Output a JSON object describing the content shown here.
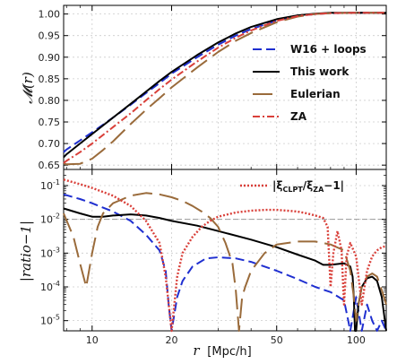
{
  "colors": {
    "w16": "#1f2fd0",
    "this_work": "#000000",
    "eulerian": "#9a6b3b",
    "za": "#d9403a",
    "ref_line": "#999999",
    "grid": "#cccccc"
  },
  "chart_data": [
    {
      "type": "line",
      "panel": "top",
      "xlabel": "r [Mpc/h]",
      "ylabel": "M(r)",
      "x_scale": "log",
      "xlim": [
        7.8,
        130
      ],
      "ylim": [
        0.64,
        1.02
      ],
      "grid": true,
      "legend_position": "right",
      "yticks": [
        0.65,
        0.7,
        0.75,
        0.8,
        0.85,
        0.9,
        0.95,
        1.0
      ],
      "ytick_labels": [
        "0.65",
        "0.70",
        "0.75",
        "0.80",
        "0.85",
        "0.90",
        "0.95",
        "1.00"
      ],
      "series": [
        {
          "name": "W16 + loops",
          "style": "dashed",
          "x": [
            7.8,
            8,
            9,
            10,
            12,
            14,
            16,
            18,
            20,
            25,
            30,
            35,
            40,
            50,
            60,
            70,
            80,
            100,
            130
          ],
          "y": [
            0.68,
            0.686,
            0.707,
            0.726,
            0.76,
            0.79,
            0.817,
            0.84,
            0.862,
            0.9,
            0.929,
            0.95,
            0.965,
            0.985,
            0.995,
            1.0,
            1.002,
            1.003,
            1.003
          ]
        },
        {
          "name": "This work",
          "style": "solid",
          "x": [
            7.8,
            8,
            9,
            10,
            12,
            14,
            16,
            18,
            20,
            25,
            30,
            35,
            40,
            50,
            60,
            70,
            80,
            100,
            130
          ],
          "y": [
            0.668,
            0.675,
            0.7,
            0.722,
            0.76,
            0.792,
            0.82,
            0.845,
            0.866,
            0.905,
            0.934,
            0.955,
            0.97,
            0.988,
            0.997,
            1.001,
            1.003,
            1.003,
            1.003
          ]
        },
        {
          "name": "Eulerian",
          "style": "long-dashed",
          "x": [
            7.8,
            8,
            9,
            10,
            11,
            12,
            14,
            16,
            18,
            20,
            25,
            30,
            35,
            40,
            50,
            60,
            70,
            80,
            100,
            130
          ],
          "y": [
            0.654,
            0.652,
            0.653,
            0.665,
            0.685,
            0.705,
            0.745,
            0.778,
            0.805,
            0.83,
            0.876,
            0.912,
            0.938,
            0.956,
            0.981,
            0.994,
            1.0,
            1.002,
            1.003,
            1.003
          ]
        },
        {
          "name": "ZA",
          "style": "dash-dot",
          "x": [
            7.8,
            8,
            9,
            10,
            12,
            14,
            16,
            18,
            20,
            25,
            30,
            35,
            40,
            50,
            60,
            70,
            80,
            100,
            130
          ],
          "y": [
            0.655,
            0.66,
            0.68,
            0.7,
            0.738,
            0.77,
            0.8,
            0.826,
            0.848,
            0.89,
            0.922,
            0.945,
            0.962,
            0.984,
            0.995,
            1.0,
            1.002,
            1.003,
            1.003
          ]
        }
      ]
    },
    {
      "type": "line",
      "panel": "bottom",
      "xlabel": "r [Mpc/h]",
      "ylabel": "|ratio-1|",
      "x_scale": "log",
      "y_scale": "log",
      "xlim": [
        7.8,
        130
      ],
      "ylim": [
        5e-06,
        0.3
      ],
      "grid": true,
      "legend_position": "top-right",
      "xticks": [
        10,
        20,
        50,
        100
      ],
      "xtick_labels": [
        "10",
        "20",
        "50",
        "100"
      ],
      "yticks": [
        0.1,
        0.01,
        0.001,
        0.0001,
        1e-05
      ],
      "ytick_labels": [
        "10^-1",
        "10^-2",
        "10^-3",
        "10^-4",
        "10^-5"
      ],
      "reference_line": 0.01,
      "series": [
        {
          "name": "W16 + loops",
          "style": "dashed",
          "x": [
            7.8,
            9,
            10,
            12,
            14,
            16,
            18,
            19,
            19.5,
            20,
            21,
            22,
            24,
            27,
            30,
            35,
            40,
            50,
            60,
            70,
            80,
            90,
            95,
            100,
            105,
            110,
            115,
            120,
            125,
            130
          ],
          "y": [
            0.055,
            0.04,
            0.03,
            0.017,
            0.009,
            0.0035,
            0.0012,
            0.0003,
            3e-05,
            3e-06,
            5e-05,
            0.00015,
            0.0004,
            0.0007,
            0.00075,
            0.0007,
            0.00055,
            0.0003,
            0.00017,
            0.0001,
            7e-05,
            4e-05,
            5e-06,
            5e-05,
            3e-06,
            3e-05,
            1e-05,
            3e-06,
            1e-05,
            4e-06
          ]
        },
        {
          "name": "This work",
          "style": "solid",
          "x": [
            7.8,
            9,
            10,
            11,
            12,
            14,
            16,
            18,
            20,
            25,
            30,
            40,
            50,
            60,
            70,
            75,
            80,
            90,
            95,
            97,
            98,
            99,
            100,
            102,
            105,
            110,
            115,
            120,
            125,
            130
          ],
          "y": [
            0.021,
            0.015,
            0.012,
            0.012,
            0.013,
            0.014,
            0.013,
            0.011,
            0.009,
            0.0065,
            0.0045,
            0.0025,
            0.0015,
            0.0009,
            0.0006,
            0.00045,
            0.00045,
            0.0005,
            0.0004,
            0.0002,
            5e-05,
            3e-06,
            3e-06,
            3e-05,
            0.0001,
            0.00018,
            0.0002,
            0.00015,
            5e-05,
            4e-06
          ]
        },
        {
          "name": "Eulerian",
          "style": "long-dashed",
          "x": [
            7.8,
            8.5,
            9,
            9.5,
            10,
            10.5,
            11,
            12,
            14,
            16,
            18,
            20,
            22,
            24,
            26,
            28,
            30,
            32,
            34,
            35,
            36,
            37,
            38,
            40,
            45,
            50,
            60,
            70,
            80,
            90,
            95,
            98,
            100,
            102,
            105,
            110,
            115,
            120,
            125,
            130
          ],
          "y": [
            0.015,
            0.003,
            0.0005,
            0.0001,
            0.001,
            0.006,
            0.015,
            0.03,
            0.05,
            0.06,
            0.055,
            0.045,
            0.035,
            0.025,
            0.017,
            0.011,
            0.006,
            0.002,
            0.0005,
            8e-05,
            3e-06,
            5e-05,
            0.0001,
            0.0003,
            0.001,
            0.0018,
            0.0022,
            0.0022,
            0.0018,
            0.0012,
            0.0003,
            5e-05,
            1e-05,
            3e-05,
            0.0001,
            0.0002,
            0.00025,
            0.0002,
            8e-05,
            3e-05
          ]
        },
        {
          "name": "|ξCLPT/ξZA−1|",
          "style": "dotted",
          "x": [
            7.8,
            9,
            10,
            12,
            14,
            16,
            18,
            19,
            20,
            21,
            22,
            24,
            26,
            28,
            30,
            35,
            40,
            45,
            50,
            55,
            60,
            65,
            70,
            75,
            78,
            80,
            82,
            85,
            88,
            90,
            92,
            95,
            100,
            105,
            110,
            115,
            120,
            125,
            130
          ],
          "y": [
            0.15,
            0.11,
            0.085,
            0.05,
            0.025,
            0.009,
            0.002,
            0.0002,
            3e-06,
            0.0002,
            0.001,
            0.003,
            0.006,
            0.009,
            0.012,
            0.016,
            0.018,
            0.019,
            0.019,
            0.018,
            0.017,
            0.015,
            0.013,
            0.011,
            0.006,
            0.0001,
            0.001,
            0.0045,
            0.0012,
            3e-05,
            0.0008,
            0.002,
            0.0008,
            3e-05,
            0.0003,
            0.0008,
            0.0012,
            0.0015,
            0.0016
          ]
        }
      ]
    }
  ],
  "legend": {
    "top": [
      {
        "key": "w16",
        "label": "W16 + loops"
      },
      {
        "key": "this_work",
        "label": "This work"
      },
      {
        "key": "eulerian",
        "label": "Eulerian"
      },
      {
        "key": "za",
        "label": "ZA"
      }
    ],
    "bottom": [
      {
        "key": "ratio",
        "label_prefix": "|ξ",
        "sub1": "CLPT",
        "mid": "/ξ",
        "sub2": "ZA",
        "suffix": "−1|"
      }
    ]
  },
  "axes": {
    "x_title_italic": "r",
    "x_title_units": "[Mpc/h]",
    "top_y_title": "𝓜(r)",
    "bottom_y_title": "|ratio−1|"
  }
}
